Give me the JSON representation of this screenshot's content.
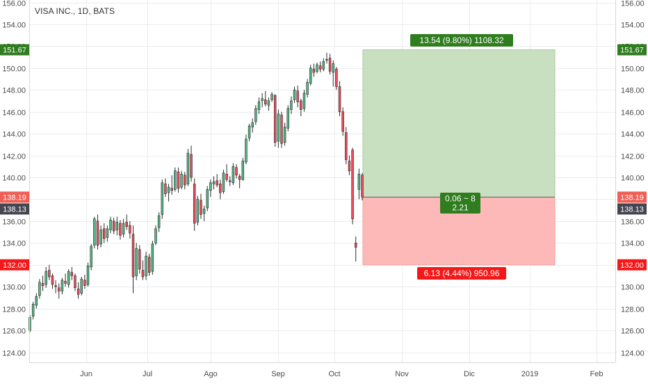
{
  "title": "VISA INC., 1D, BATS",
  "colors": {
    "up": "#53b987",
    "down": "#eb4d5c",
    "profit_fill": "#c8dfc0",
    "loss_fill": "#fdb8b8",
    "profit_label": "#2f7d1f",
    "loss_label": "#f51818",
    "last_price_label": "#ef5f55",
    "current_label": "#434651",
    "grid": "#e9ecef"
  },
  "chart_data": {
    "type": "candlestick",
    "title": "VISA INC., 1D, BATS",
    "y_ticks": [
      124,
      126,
      128,
      130,
      132,
      134,
      136,
      138,
      140,
      142,
      144,
      146,
      148,
      150,
      152,
      154,
      156
    ],
    "y_tick_labels": [
      "124.00",
      "126.00",
      "128.00",
      "130.00",
      "132.00",
      "134.00",
      "136.00",
      "138.00",
      "140.00",
      "142.00",
      "144.00",
      "146.00",
      "148.00",
      "150.00",
      "152.00",
      "154.00",
      "156.00"
    ],
    "ylim": [
      123,
      156.3
    ],
    "x_labels": [
      "Jun",
      "Jul",
      "Ago",
      "Sep",
      "Oct",
      "Nov",
      "Dic",
      "2019",
      "Feb"
    ],
    "grid": true,
    "candles": [
      {
        "o": 126.0,
        "h": 127.4,
        "l": 125.8,
        "c": 127.2
      },
      {
        "o": 127.3,
        "h": 128.6,
        "l": 127.0,
        "c": 128.4
      },
      {
        "o": 128.3,
        "h": 129.4,
        "l": 128.0,
        "c": 129.1
      },
      {
        "o": 129.2,
        "h": 130.7,
        "l": 128.9,
        "c": 130.4
      },
      {
        "o": 130.3,
        "h": 131.0,
        "l": 129.6,
        "c": 130.1
      },
      {
        "o": 130.2,
        "h": 131.8,
        "l": 129.9,
        "c": 131.4
      },
      {
        "o": 131.5,
        "h": 132.0,
        "l": 130.6,
        "c": 130.9
      },
      {
        "o": 131.0,
        "h": 131.2,
        "l": 129.8,
        "c": 130.2
      },
      {
        "o": 130.1,
        "h": 130.6,
        "l": 129.4,
        "c": 130.0
      },
      {
        "o": 129.9,
        "h": 130.3,
        "l": 128.9,
        "c": 129.6
      },
      {
        "o": 129.6,
        "h": 130.8,
        "l": 129.3,
        "c": 130.6
      },
      {
        "o": 130.5,
        "h": 131.2,
        "l": 130.0,
        "c": 130.3
      },
      {
        "o": 130.2,
        "h": 131.6,
        "l": 129.9,
        "c": 131.4
      },
      {
        "o": 131.3,
        "h": 131.8,
        "l": 130.6,
        "c": 131.0
      },
      {
        "o": 131.0,
        "h": 131.2,
        "l": 129.6,
        "c": 129.9
      },
      {
        "o": 129.8,
        "h": 130.4,
        "l": 128.9,
        "c": 129.3
      },
      {
        "o": 129.4,
        "h": 130.9,
        "l": 129.2,
        "c": 130.7
      },
      {
        "o": 130.6,
        "h": 131.1,
        "l": 129.8,
        "c": 130.1
      },
      {
        "o": 130.2,
        "h": 132.2,
        "l": 130.0,
        "c": 131.9
      },
      {
        "o": 131.8,
        "h": 133.9,
        "l": 131.5,
        "c": 133.7
      },
      {
        "o": 133.8,
        "h": 136.4,
        "l": 133.5,
        "c": 136.2
      },
      {
        "o": 136.0,
        "h": 136.6,
        "l": 133.4,
        "c": 133.8
      },
      {
        "o": 133.9,
        "h": 135.6,
        "l": 133.6,
        "c": 135.2
      },
      {
        "o": 135.3,
        "h": 135.8,
        "l": 134.0,
        "c": 134.4
      },
      {
        "o": 134.5,
        "h": 135.6,
        "l": 134.1,
        "c": 135.3
      },
      {
        "o": 135.2,
        "h": 136.4,
        "l": 134.9,
        "c": 136.1
      },
      {
        "o": 136.0,
        "h": 136.3,
        "l": 134.8,
        "c": 135.1
      },
      {
        "o": 135.2,
        "h": 136.4,
        "l": 134.7,
        "c": 135.9
      },
      {
        "o": 135.8,
        "h": 136.1,
        "l": 134.3,
        "c": 134.7
      },
      {
        "o": 134.8,
        "h": 136.2,
        "l": 134.5,
        "c": 135.8
      },
      {
        "o": 135.9,
        "h": 136.6,
        "l": 135.2,
        "c": 135.5
      },
      {
        "o": 135.6,
        "h": 136.0,
        "l": 134.4,
        "c": 134.9
      },
      {
        "o": 134.8,
        "h": 135.6,
        "l": 129.4,
        "c": 130.9
      },
      {
        "o": 131.0,
        "h": 134.0,
        "l": 130.6,
        "c": 133.5
      },
      {
        "o": 133.4,
        "h": 133.8,
        "l": 131.2,
        "c": 131.6
      },
      {
        "o": 131.5,
        "h": 132.4,
        "l": 130.6,
        "c": 130.9
      },
      {
        "o": 131.0,
        "h": 133.2,
        "l": 130.6,
        "c": 132.8
      },
      {
        "o": 132.7,
        "h": 133.0,
        "l": 131.0,
        "c": 131.3
      },
      {
        "o": 131.4,
        "h": 134.2,
        "l": 131.1,
        "c": 133.9
      },
      {
        "o": 134.0,
        "h": 135.6,
        "l": 133.8,
        "c": 135.3
      },
      {
        "o": 135.4,
        "h": 136.8,
        "l": 135.0,
        "c": 136.5
      },
      {
        "o": 136.6,
        "h": 139.8,
        "l": 136.2,
        "c": 139.5
      },
      {
        "o": 139.4,
        "h": 139.9,
        "l": 138.2,
        "c": 138.5
      },
      {
        "o": 138.6,
        "h": 139.4,
        "l": 137.8,
        "c": 139.1
      },
      {
        "o": 139.0,
        "h": 140.2,
        "l": 138.4,
        "c": 138.8
      },
      {
        "o": 138.9,
        "h": 140.9,
        "l": 138.7,
        "c": 140.6
      },
      {
        "o": 140.5,
        "h": 140.9,
        "l": 138.6,
        "c": 139.0
      },
      {
        "o": 139.1,
        "h": 140.6,
        "l": 138.9,
        "c": 140.3
      },
      {
        "o": 140.2,
        "h": 140.5,
        "l": 138.9,
        "c": 139.3
      },
      {
        "o": 139.4,
        "h": 142.6,
        "l": 139.2,
        "c": 142.2
      },
      {
        "o": 142.1,
        "h": 142.9,
        "l": 139.6,
        "c": 140.0
      },
      {
        "o": 139.4,
        "h": 139.9,
        "l": 135.1,
        "c": 135.8
      },
      {
        "o": 135.9,
        "h": 138.3,
        "l": 135.6,
        "c": 138.0
      },
      {
        "o": 137.9,
        "h": 138.5,
        "l": 136.2,
        "c": 136.6
      },
      {
        "o": 136.7,
        "h": 137.4,
        "l": 136.0,
        "c": 137.1
      },
      {
        "o": 137.2,
        "h": 139.2,
        "l": 136.9,
        "c": 138.9
      },
      {
        "o": 138.8,
        "h": 139.8,
        "l": 138.2,
        "c": 139.5
      },
      {
        "o": 139.4,
        "h": 140.1,
        "l": 138.9,
        "c": 139.6
      },
      {
        "o": 139.7,
        "h": 140.3,
        "l": 139.1,
        "c": 139.3
      },
      {
        "o": 139.4,
        "h": 139.8,
        "l": 138.0,
        "c": 138.6
      },
      {
        "o": 138.7,
        "h": 140.7,
        "l": 138.5,
        "c": 140.4
      },
      {
        "o": 140.3,
        "h": 141.2,
        "l": 139.6,
        "c": 139.8
      },
      {
        "o": 139.7,
        "h": 140.1,
        "l": 139.2,
        "c": 139.6
      },
      {
        "o": 139.5,
        "h": 141.3,
        "l": 139.3,
        "c": 141.0
      },
      {
        "o": 140.9,
        "h": 141.2,
        "l": 139.9,
        "c": 140.2
      },
      {
        "o": 140.1,
        "h": 140.3,
        "l": 139.0,
        "c": 139.8
      },
      {
        "o": 139.8,
        "h": 141.8,
        "l": 139.7,
        "c": 141.5
      },
      {
        "o": 141.4,
        "h": 143.9,
        "l": 141.2,
        "c": 143.5
      },
      {
        "o": 143.6,
        "h": 144.9,
        "l": 143.3,
        "c": 144.7
      },
      {
        "o": 144.6,
        "h": 145.4,
        "l": 144.1,
        "c": 145.0
      },
      {
        "o": 145.1,
        "h": 146.6,
        "l": 144.8,
        "c": 146.3
      },
      {
        "o": 146.2,
        "h": 147.3,
        "l": 145.8,
        "c": 146.9
      },
      {
        "o": 147.0,
        "h": 147.7,
        "l": 146.4,
        "c": 147.2
      },
      {
        "o": 147.1,
        "h": 147.9,
        "l": 146.5,
        "c": 146.7
      },
      {
        "o": 146.6,
        "h": 147.3,
        "l": 146.1,
        "c": 147.0
      },
      {
        "o": 147.1,
        "h": 147.8,
        "l": 146.9,
        "c": 147.6
      },
      {
        "o": 147.5,
        "h": 147.6,
        "l": 142.8,
        "c": 143.2
      },
      {
        "o": 143.3,
        "h": 146.2,
        "l": 142.7,
        "c": 145.8
      },
      {
        "o": 145.7,
        "h": 146.0,
        "l": 142.7,
        "c": 143.1
      },
      {
        "o": 143.2,
        "h": 145.0,
        "l": 142.9,
        "c": 144.6
      },
      {
        "o": 144.5,
        "h": 146.6,
        "l": 144.2,
        "c": 146.3
      },
      {
        "o": 146.2,
        "h": 147.4,
        "l": 145.8,
        "c": 147.0
      },
      {
        "o": 147.1,
        "h": 148.3,
        "l": 146.8,
        "c": 148.0
      },
      {
        "o": 147.9,
        "h": 148.4,
        "l": 146.4,
        "c": 146.9
      },
      {
        "o": 147.0,
        "h": 147.2,
        "l": 145.6,
        "c": 146.2
      },
      {
        "o": 146.3,
        "h": 148.0,
        "l": 146.0,
        "c": 147.7
      },
      {
        "o": 147.6,
        "h": 149.0,
        "l": 147.3,
        "c": 148.7
      },
      {
        "o": 148.6,
        "h": 150.3,
        "l": 148.4,
        "c": 150.0
      },
      {
        "o": 149.9,
        "h": 150.4,
        "l": 149.2,
        "c": 149.6
      },
      {
        "o": 149.7,
        "h": 150.5,
        "l": 149.5,
        "c": 150.3
      },
      {
        "o": 150.2,
        "h": 150.6,
        "l": 149.6,
        "c": 149.9
      },
      {
        "o": 149.9,
        "h": 150.9,
        "l": 149.7,
        "c": 150.6
      },
      {
        "o": 150.7,
        "h": 151.4,
        "l": 150.4,
        "c": 150.8
      },
      {
        "o": 150.9,
        "h": 151.3,
        "l": 149.4,
        "c": 149.7
      },
      {
        "o": 149.6,
        "h": 150.7,
        "l": 148.3,
        "c": 150.4
      },
      {
        "o": 149.9,
        "h": 150.1,
        "l": 148.0,
        "c": 148.3
      },
      {
        "o": 148.3,
        "h": 148.8,
        "l": 145.6,
        "c": 146.0
      },
      {
        "o": 146.0,
        "h": 146.4,
        "l": 143.8,
        "c": 144.2
      },
      {
        "o": 144.1,
        "h": 144.6,
        "l": 141.2,
        "c": 141.6
      },
      {
        "o": 141.5,
        "h": 142.0,
        "l": 140.2,
        "c": 140.6
      },
      {
        "o": 142.5,
        "h": 142.7,
        "l": 135.7,
        "c": 136.2
      },
      {
        "o": 134.0,
        "h": 134.6,
        "l": 132.3,
        "c": 133.6
      },
      {
        "o": 138.9,
        "h": 140.8,
        "l": 138.0,
        "c": 140.3
      },
      {
        "o": 140.2,
        "h": 140.4,
        "l": 137.9,
        "c": 138.2
      }
    ]
  },
  "position": {
    "entry": 138.19,
    "target": 151.67,
    "stop": 132.0,
    "profit_label": "13.54 (9.80%) 1108.32",
    "loss_label": "6.13 (4.44%) 950.96",
    "ratio_line1": "0.06 ~ 8",
    "ratio_line2": "2.21"
  },
  "price_labels": {
    "target": "151.67",
    "entry": "138.19",
    "current": "138.13",
    "stop": "132.00"
  }
}
